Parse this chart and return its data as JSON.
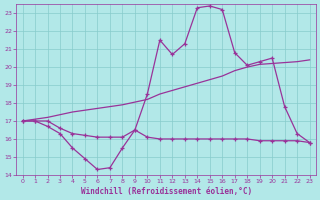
{
  "title": "Windchill (Refroidissement éolien,°C)",
  "bg_color": "#b2e8e8",
  "line_color": "#993399",
  "grid_color": "#88cccc",
  "xlim": [
    -0.5,
    23.5
  ],
  "ylim": [
    14,
    23.5
  ],
  "yticks": [
    14,
    15,
    16,
    17,
    18,
    19,
    20,
    21,
    22,
    23
  ],
  "xticks": [
    0,
    1,
    2,
    3,
    4,
    5,
    6,
    7,
    8,
    9,
    10,
    11,
    12,
    13,
    14,
    15,
    16,
    17,
    18,
    19,
    20,
    21,
    22,
    23
  ],
  "line1_x": [
    0,
    1,
    2,
    3,
    4,
    5,
    6,
    7,
    8,
    9,
    10,
    11,
    12,
    13,
    14,
    15,
    16,
    17,
    18,
    19,
    20,
    21,
    22,
    23
  ],
  "line1_y": [
    17.0,
    17.0,
    16.7,
    16.3,
    15.5,
    14.9,
    14.3,
    14.4,
    15.5,
    16.5,
    18.5,
    21.5,
    20.7,
    21.3,
    23.3,
    23.4,
    23.2,
    20.8,
    20.1,
    20.3,
    20.5,
    17.8,
    16.3,
    15.8
  ],
  "line2_x": [
    0,
    1,
    2,
    3,
    4,
    5,
    6,
    7,
    8,
    9,
    10,
    11,
    12,
    13,
    14,
    15,
    16,
    17,
    18,
    19,
    20,
    21,
    22,
    23
  ],
  "line2_y": [
    17.0,
    17.0,
    17.0,
    16.6,
    16.3,
    16.2,
    16.1,
    16.1,
    16.1,
    16.5,
    16.1,
    16.0,
    16.0,
    16.0,
    16.0,
    16.0,
    16.0,
    16.0,
    16.0,
    15.9,
    15.9,
    15.9,
    15.9,
    15.8
  ],
  "line3_x": [
    0,
    1,
    2,
    3,
    4,
    5,
    6,
    7,
    8,
    9,
    10,
    11,
    12,
    13,
    14,
    15,
    16,
    17,
    18,
    19,
    20,
    21,
    22,
    23
  ],
  "line3_y": [
    17.0,
    17.1,
    17.2,
    17.35,
    17.5,
    17.6,
    17.7,
    17.8,
    17.9,
    18.05,
    18.2,
    18.5,
    18.7,
    18.9,
    19.1,
    19.3,
    19.5,
    19.8,
    20.0,
    20.15,
    20.2,
    20.25,
    20.3,
    20.4
  ]
}
